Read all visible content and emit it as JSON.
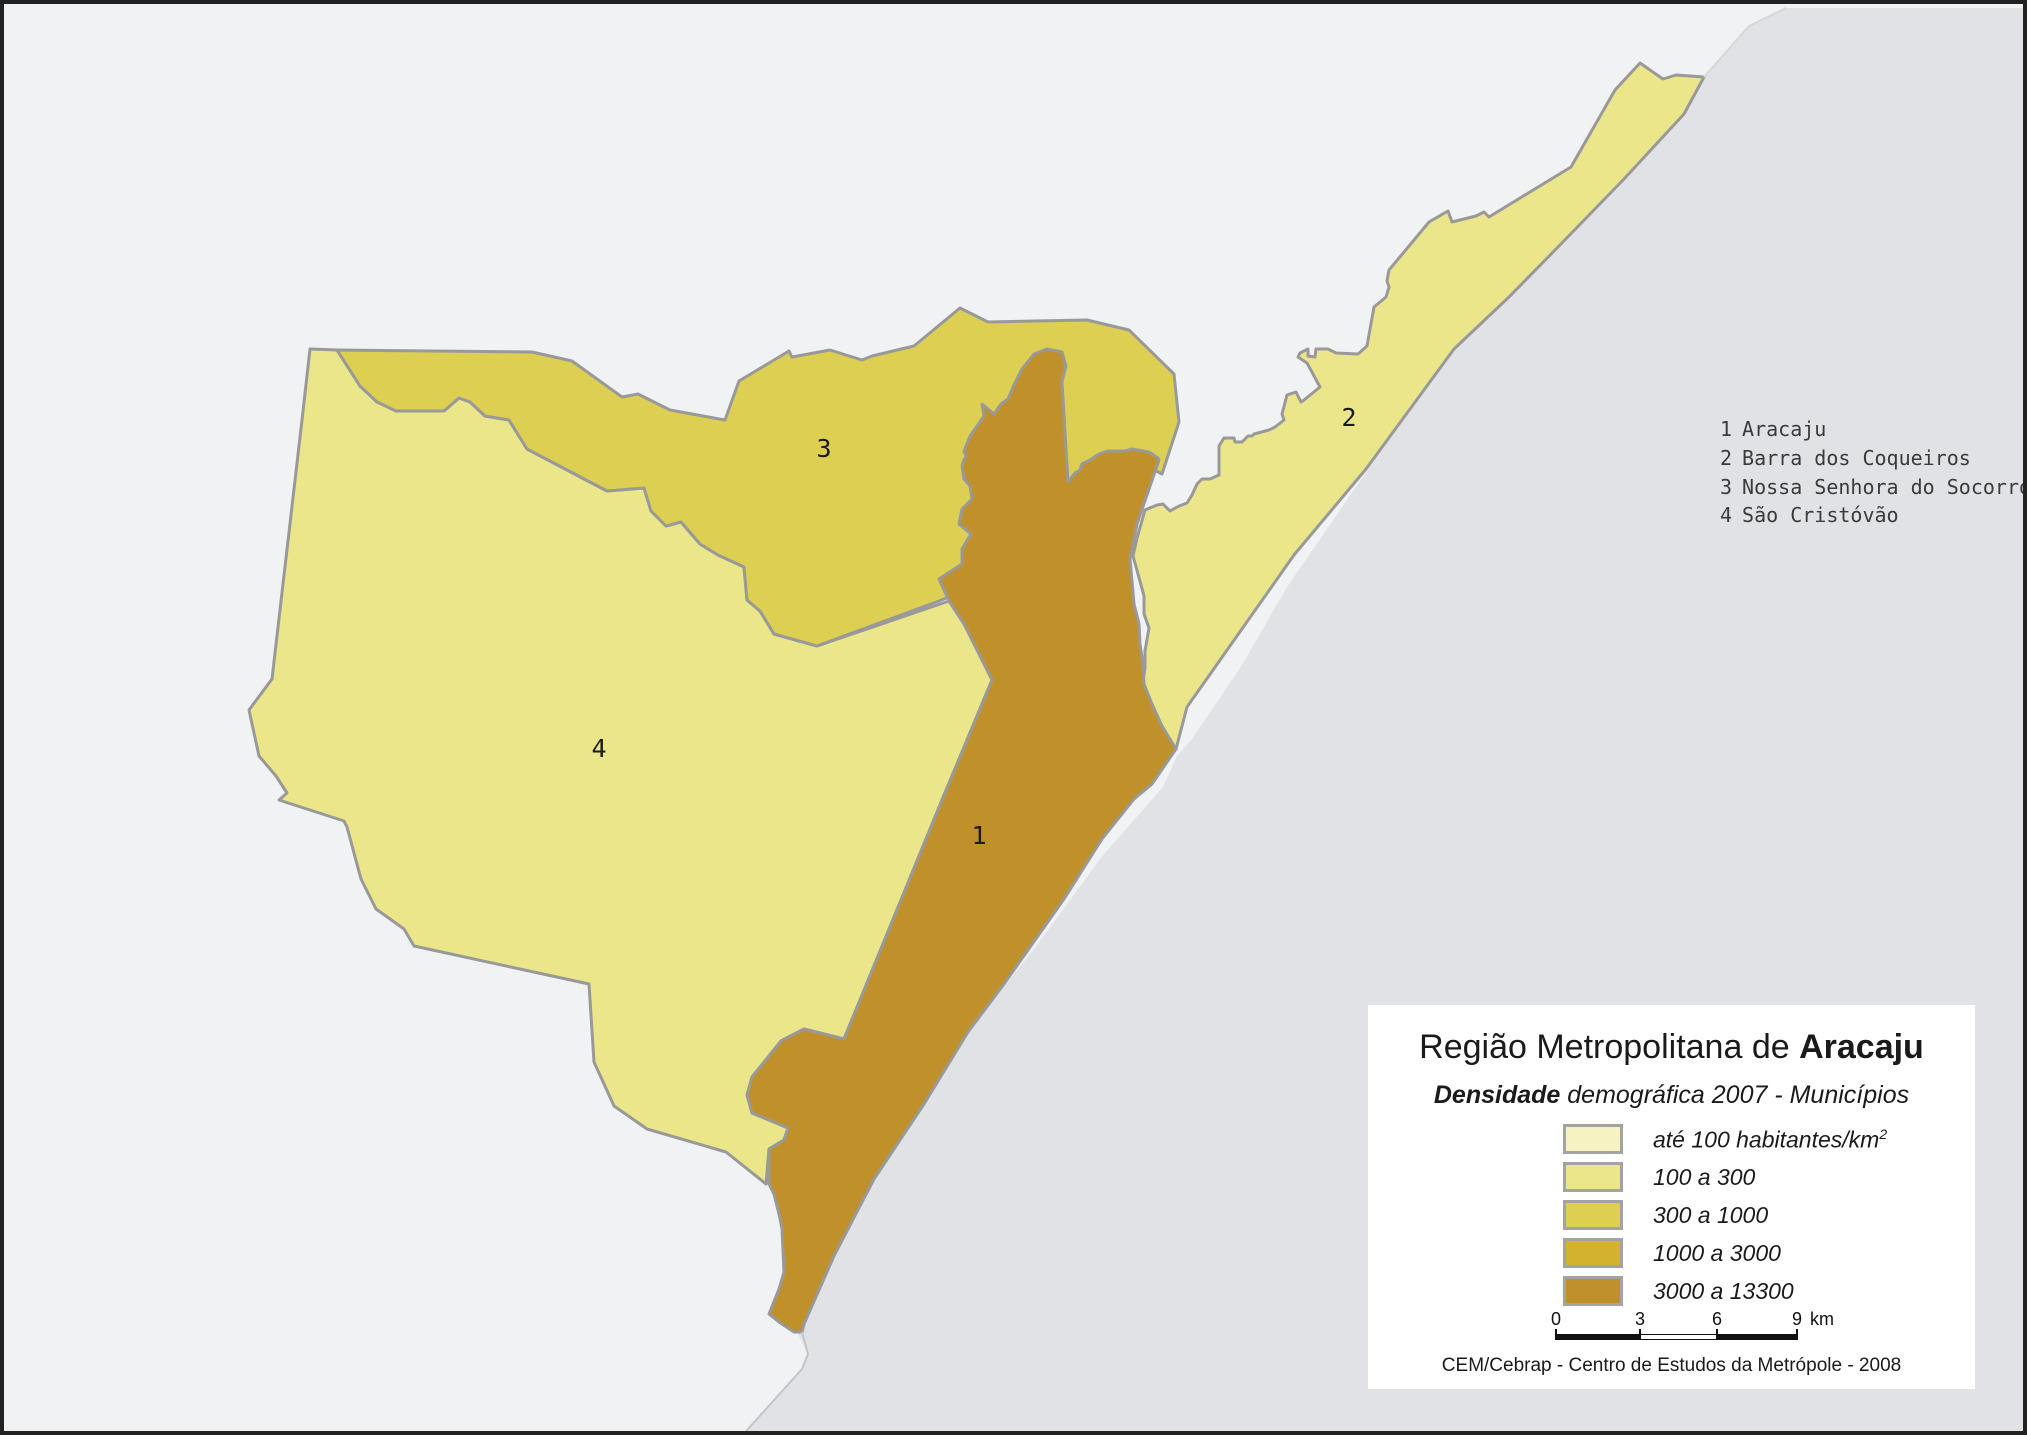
{
  "map": {
    "title_prefix": "Região Metropolitana de ",
    "title_emphasis": "Aracaju",
    "subtitle_emphasis": "Densidade",
    "subtitle_rest": " demográfica 2007 - Municípios",
    "credit": "CEM/Cebrap - Centro de Estudos da Metrópole - 2008"
  },
  "municipalities": [
    {
      "number": "1",
      "name": "Aracaju",
      "fill": "#c0912b"
    },
    {
      "number": "2",
      "name": "Barra dos Coqueiros",
      "fill": "#ebe68a"
    },
    {
      "number": "3",
      "name": "Nossa Senhora do Socorro",
      "fill": "#ddcf52"
    },
    {
      "number": "4",
      "name": "São Cristóvão",
      "fill": "#ebe68a"
    }
  ],
  "density_classes": [
    {
      "label": "até 100 habitantes/km",
      "sup": "2",
      "color": "#f6f3c0"
    },
    {
      "label": "100 a 300",
      "sup": "",
      "color": "#ebe68a"
    },
    {
      "label": "300 a 1000",
      "sup": "",
      "color": "#ddcf52"
    },
    {
      "label": "1000 a 3000",
      "sup": "",
      "color": "#d3b22f"
    },
    {
      "label": "3000 a 13300",
      "sup": "",
      "color": "#c0912b"
    }
  ],
  "scale": {
    "ticks": [
      "0",
      "3",
      "6",
      "9"
    ],
    "unit": "km"
  },
  "colors": {
    "background": "#f1f2f4",
    "ocean": "#e1e2e5",
    "boundary": "#999999",
    "frame": "#222222"
  }
}
